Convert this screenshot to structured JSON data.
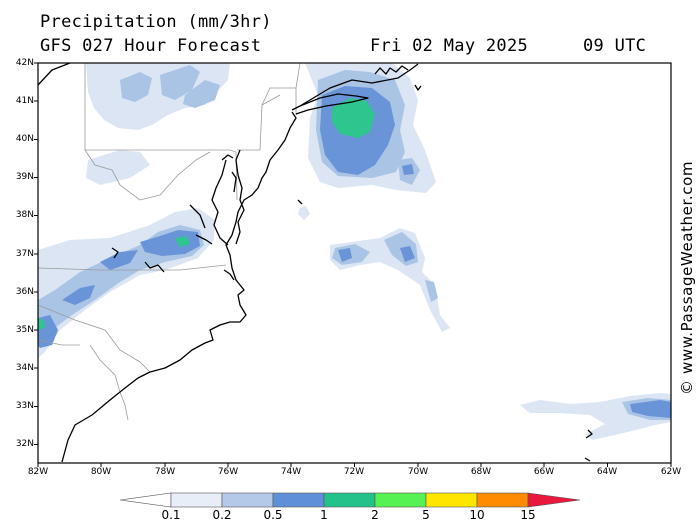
{
  "header": {
    "title": "Precipitation (mm/3hr)",
    "subtitle": "GFS 027 Hour Forecast",
    "date": "Fri 02 May 2025",
    "time": "09 UTC"
  },
  "watermark": "© www.PassageWeather.com",
  "latitude_labels": [
    "42N",
    "41N",
    "40N",
    "39N",
    "38N",
    "37N",
    "36N",
    "35N",
    "34N",
    "33N",
    "32N"
  ],
  "longitude_labels": [
    "82W",
    "80W",
    "78W",
    "76W",
    "74W",
    "72W",
    "70W",
    "68W",
    "66W",
    "64W",
    "62W"
  ],
  "legend": {
    "labels": [
      "0.1",
      "0.2",
      "0.5",
      "1",
      "2",
      "5",
      "10",
      "15"
    ],
    "colors": [
      "#e8eef8",
      "#b4c8e8",
      "#5f8fd8",
      "#22c28a",
      "#56f254",
      "#ffe600",
      "#ff8c00",
      "#e8193c"
    ]
  },
  "colors": {
    "light": "#dbe5f4",
    "medium": "#aac4e6",
    "heavy": "#6a94d8",
    "intense": "#2ec58e",
    "coast": "#000000",
    "border": "#9a9a9a"
  }
}
